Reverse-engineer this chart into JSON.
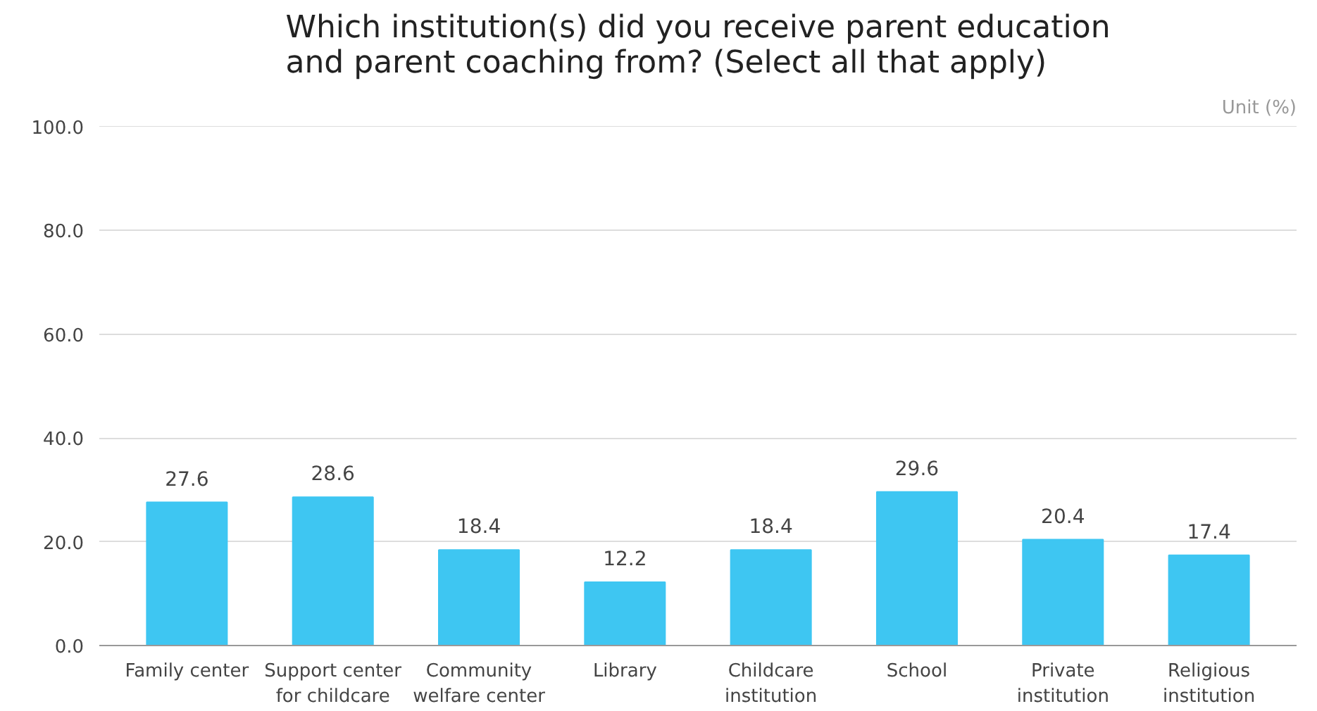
{
  "chart_data": {
    "type": "bar",
    "title": "Which institution(s) did you receive parent education\nand parent coaching from? (Select all that apply)",
    "categories": [
      "Family center",
      "Support center\nfor childcare",
      "Community\nwelfare center",
      "Library",
      "Childcare\ninstitution",
      "School",
      "Private\ninstitution",
      "Religious\ninstitution"
    ],
    "values": [
      27.6,
      28.6,
      18.4,
      12.2,
      18.4,
      29.6,
      20.4,
      17.4
    ],
    "color": "#3ec6f2",
    "ylim": [
      0,
      100
    ],
    "yticks": [
      {
        "value": 0,
        "label": "0.0"
      },
      {
        "value": 20,
        "label": "20.0"
      },
      {
        "value": 40,
        "label": "40.0"
      },
      {
        "value": 60,
        "label": "60.0"
      },
      {
        "value": 80,
        "label": "80.0"
      },
      {
        "value": 100,
        "label": "100.0"
      }
    ],
    "grid": "y",
    "data_labels": true,
    "annotations": [
      "Unit (%)"
    ]
  }
}
